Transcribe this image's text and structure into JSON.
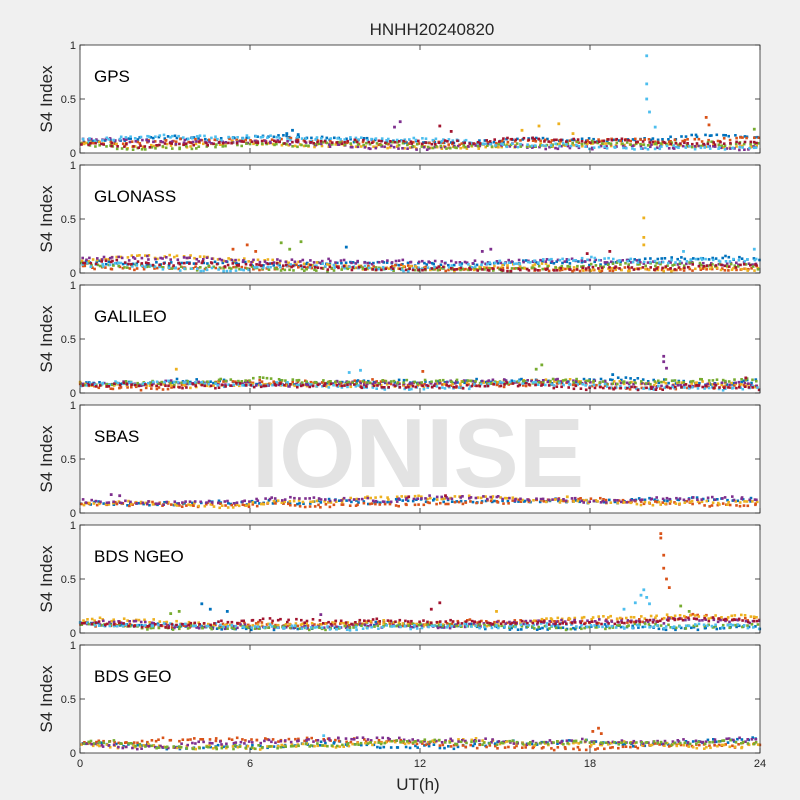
{
  "figure": {
    "title": "HNHH20240820",
    "watermark": "IONISE",
    "xlabel": "UT(h)"
  },
  "colors": {
    "series": [
      "#0072BD",
      "#D95319",
      "#EDB120",
      "#7E2F8E",
      "#77AC30",
      "#4DBEEE",
      "#A2142F"
    ],
    "background": "#f0f0f0",
    "axes_face": "#ffffff",
    "watermark": "#d9d9d9"
  },
  "chart_data": [
    {
      "type": "scatter",
      "title": "",
      "label": "GPS",
      "ylabel": "S4 Index",
      "xlabel": "",
      "xlim": [
        0,
        24
      ],
      "ylim": [
        0,
        1
      ],
      "xticks": [
        0,
        6,
        12,
        18,
        24
      ],
      "yticks": [
        0,
        0.5,
        1
      ],
      "ytick_labels": [
        "0",
        "0.5",
        "1"
      ],
      "xtick_labels": [],
      "grid": false,
      "legend": "none",
      "series_count": 7,
      "baseline": {
        "min": 0.04,
        "max": 0.16
      },
      "bursts": [
        {
          "x": [
            7.3,
            7.5,
            7.7
          ],
          "y": [
            0.18,
            0.21,
            0.17
          ]
        },
        {
          "x": [
            11.1,
            11.3
          ],
          "y": [
            0.24,
            0.29
          ]
        },
        {
          "x": [
            12.7,
            13.1
          ],
          "y": [
            0.25,
            0.2
          ]
        },
        {
          "x": [
            15.6,
            16.2,
            16.9,
            17.4
          ],
          "y": [
            0.21,
            0.25,
            0.27,
            0.18
          ]
        },
        {
          "x": [
            20.0,
            20.0,
            20.0,
            20.1,
            20.3
          ],
          "y": [
            0.9,
            0.64,
            0.5,
            0.38,
            0.24
          ]
        },
        {
          "x": [
            22.1,
            22.2
          ],
          "y": [
            0.33,
            0.26
          ]
        },
        {
          "x": [
            23.8
          ],
          "y": [
            0.22
          ]
        }
      ]
    },
    {
      "type": "scatter",
      "title": "",
      "label": "GLONASS",
      "ylabel": "S4 Index",
      "xlabel": "",
      "xlim": [
        0,
        24
      ],
      "ylim": [
        0,
        1
      ],
      "xticks": [
        0,
        6,
        12,
        18,
        24
      ],
      "yticks": [
        0,
        0.5,
        1
      ],
      "ytick_labels": [
        "0",
        "0.5",
        "1"
      ],
      "xtick_labels": [],
      "grid": false,
      "legend": "none",
      "series_count": 7,
      "baseline": {
        "min": 0.03,
        "max": 0.16
      },
      "bursts": [
        {
          "x": [
            5.4,
            5.9,
            6.2
          ],
          "y": [
            0.22,
            0.26,
            0.2
          ]
        },
        {
          "x": [
            7.1,
            7.4,
            7.8
          ],
          "y": [
            0.28,
            0.22,
            0.29
          ]
        },
        {
          "x": [
            9.4
          ],
          "y": [
            0.24
          ]
        },
        {
          "x": [
            14.2,
            14.5
          ],
          "y": [
            0.2,
            0.22
          ]
        },
        {
          "x": [
            17.9,
            18.7
          ],
          "y": [
            0.18,
            0.2
          ]
        },
        {
          "x": [
            19.9,
            19.9,
            19.9
          ],
          "y": [
            0.51,
            0.33,
            0.26
          ]
        },
        {
          "x": [
            21.3,
            23.8
          ],
          "y": [
            0.2,
            0.22
          ]
        }
      ]
    },
    {
      "type": "scatter",
      "title": "",
      "label": "GALILEO",
      "ylabel": "S4 Index",
      "xlabel": "",
      "xlim": [
        0,
        24
      ],
      "ylim": [
        0,
        1
      ],
      "xticks": [
        0,
        6,
        12,
        18,
        24
      ],
      "yticks": [
        0,
        0.5,
        1
      ],
      "ytick_labels": [
        "0",
        "0.5",
        "1"
      ],
      "xtick_labels": [],
      "grid": false,
      "legend": "none",
      "series_count": 7,
      "baseline": {
        "min": 0.04,
        "max": 0.13
      },
      "bursts": [
        {
          "x": [
            3.4
          ],
          "y": [
            0.22
          ]
        },
        {
          "x": [
            9.5,
            9.9
          ],
          "y": [
            0.19,
            0.21
          ]
        },
        {
          "x": [
            12.1
          ],
          "y": [
            0.2
          ]
        },
        {
          "x": [
            16.1,
            16.3
          ],
          "y": [
            0.22,
            0.26
          ]
        },
        {
          "x": [
            18.8
          ],
          "y": [
            0.17
          ]
        },
        {
          "x": [
            20.6,
            20.6,
            20.7
          ],
          "y": [
            0.34,
            0.29,
            0.23
          ]
        },
        {
          "x": [
            23.5
          ],
          "y": [
            0.14
          ]
        }
      ]
    },
    {
      "type": "scatter",
      "title": "",
      "label": "SBAS",
      "ylabel": "S4 Index",
      "xlabel": "",
      "xlim": [
        0,
        24
      ],
      "ylim": [
        0,
        1
      ],
      "xticks": [
        0,
        6,
        12,
        18,
        24
      ],
      "yticks": [
        0,
        0.5,
        1
      ],
      "ytick_labels": [
        "0",
        "0.5",
        "1"
      ],
      "xtick_labels": [],
      "grid": false,
      "legend": "none",
      "series_count": 4,
      "baseline": {
        "min": 0.06,
        "max": 0.15
      },
      "bursts": [
        {
          "x": [
            1.1,
            1.4
          ],
          "y": [
            0.17,
            0.16
          ]
        },
        {
          "x": [
            11.6,
            12.9
          ],
          "y": [
            0.15,
            0.16
          ]
        },
        {
          "x": [
            17.2
          ],
          "y": [
            0.15
          ]
        }
      ]
    },
    {
      "type": "scatter",
      "title": "",
      "label": "BDS NGEO",
      "ylabel": "S4 Index",
      "xlabel": "",
      "xlim": [
        0,
        24
      ],
      "ylim": [
        0,
        1
      ],
      "xticks": [
        0,
        6,
        12,
        18,
        24
      ],
      "yticks": [
        0,
        0.5,
        1
      ],
      "ytick_labels": [
        "0",
        "0.5",
        "1"
      ],
      "xtick_labels": [],
      "grid": false,
      "legend": "none",
      "series_count": 7,
      "baseline": {
        "min": 0.04,
        "max": 0.16
      },
      "bursts": [
        {
          "x": [
            3.2,
            3.5
          ],
          "y": [
            0.18,
            0.2
          ]
        },
        {
          "x": [
            4.3,
            4.6,
            5.2
          ],
          "y": [
            0.27,
            0.22,
            0.2
          ]
        },
        {
          "x": [
            8.5
          ],
          "y": [
            0.17
          ]
        },
        {
          "x": [
            12.4,
            12.7
          ],
          "y": [
            0.22,
            0.28
          ]
        },
        {
          "x": [
            14.7
          ],
          "y": [
            0.2
          ]
        },
        {
          "x": [
            19.2,
            19.6,
            19.8,
            19.9,
            20.0,
            20.1
          ],
          "y": [
            0.22,
            0.28,
            0.35,
            0.4,
            0.33,
            0.27
          ]
        },
        {
          "x": [
            20.5,
            20.5,
            20.6,
            20.6,
            20.7,
            20.8
          ],
          "y": [
            0.92,
            0.88,
            0.72,
            0.6,
            0.5,
            0.42
          ]
        },
        {
          "x": [
            21.2,
            21.5
          ],
          "y": [
            0.25,
            0.2
          ]
        }
      ]
    },
    {
      "type": "scatter",
      "title": "",
      "label": "BDS GEO",
      "ylabel": "S4 Index",
      "xlabel": "UT(h)",
      "xlim": [
        0,
        24
      ],
      "ylim": [
        0,
        1
      ],
      "xticks": [
        0,
        6,
        12,
        18,
        24
      ],
      "yticks": [
        0,
        0.5,
        1
      ],
      "ytick_labels": [
        "0",
        "0.5",
        "1"
      ],
      "xtick_labels": [
        "0",
        "6",
        "12",
        "18",
        "24"
      ],
      "grid": false,
      "legend": "none",
      "series_count": 5,
      "baseline": {
        "min": 0.04,
        "max": 0.13
      },
      "bursts": [
        {
          "x": [
            8.6
          ],
          "y": [
            0.16
          ]
        },
        {
          "x": [
            18.1,
            18.3,
            18.4
          ],
          "y": [
            0.2,
            0.23,
            0.18
          ]
        }
      ]
    }
  ]
}
